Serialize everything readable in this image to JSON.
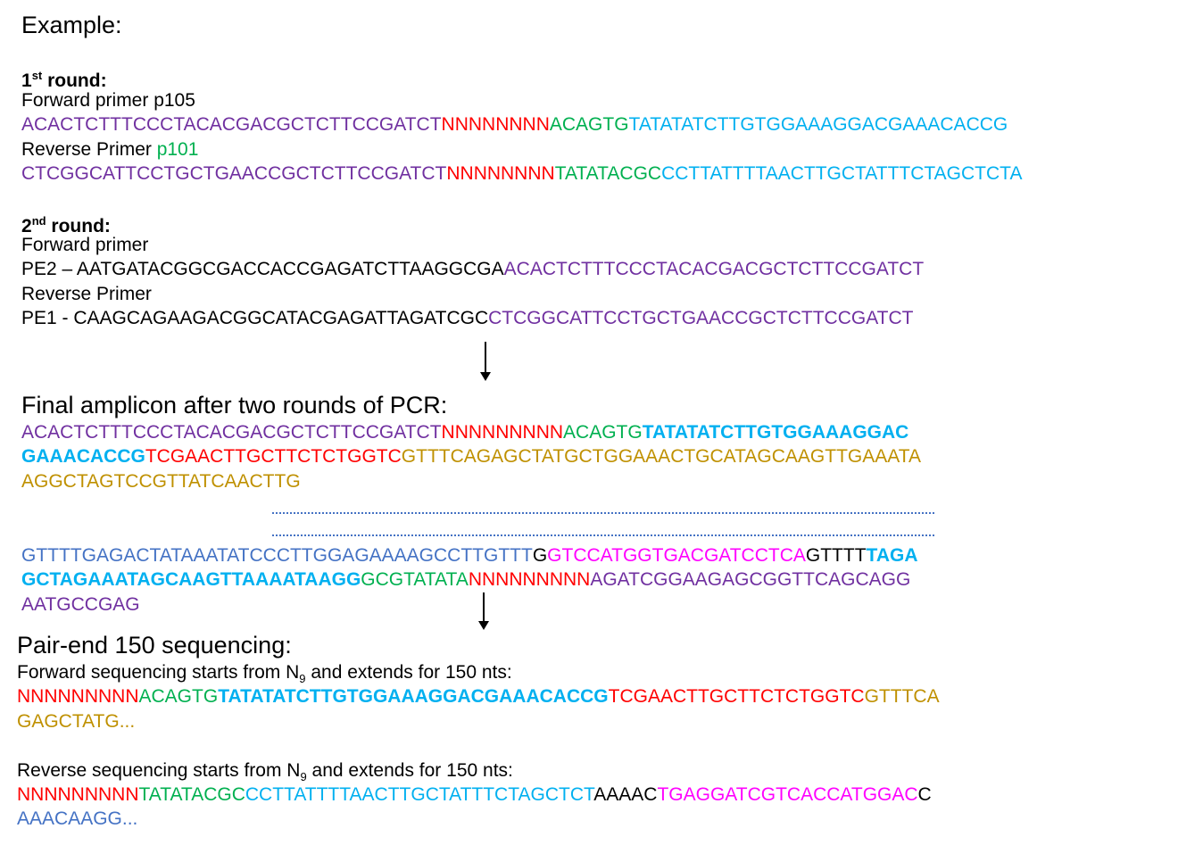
{
  "colors": {
    "purple": "#7030a0",
    "red": "#ff0000",
    "green": "#00b050",
    "cyan": "#00b0f0",
    "olive": "#bf9000",
    "blue": "#4472c4",
    "magenta": "#ff00ff",
    "black": "#000000"
  },
  "heading": "Example:",
  "round1": {
    "label_main": "1",
    "label_sup": "st",
    "label_rest": " round:",
    "forward_label": "Forward primer p105",
    "forward_seq": [
      {
        "t": "ACACTCTTTCCCTACACGACGCTCTTCCGATCT",
        "c": "purple"
      },
      {
        "t": "NNNNNNNN",
        "c": "red"
      },
      {
        "t": "ACAGTG",
        "c": "green"
      },
      {
        "t": "TATATATCTTGTGGAAAGGACGAAACACCG",
        "c": "cyan"
      }
    ],
    "reverse_label": "Reverse Primer ",
    "reverse_label_id": "p101",
    "reverse_seq": [
      {
        "t": "CTCGGCATTCCTGCTGAACCGCTCTTCCGATCT",
        "c": "purple"
      },
      {
        "t": "NNNNNNNN",
        "c": "red"
      },
      {
        "t": "TATATACGC",
        "c": "green"
      },
      {
        "t": "CCTTATTTTAACTTGCTATTTCTAGCTCTA",
        "c": "cyan"
      }
    ]
  },
  "round2": {
    "label_main": "2",
    "label_sup": "nd",
    "label_rest": " round:",
    "forward_label": "Forward primer",
    "forward_seq": [
      {
        "t": "PE2 – AATGATACGGCGACCACCGAGATCTTAAGGCGA",
        "c": "black"
      },
      {
        "t": "ACACTCTTTCCCTACACGACGCTCTTCCGATCT",
        "c": "purple"
      }
    ],
    "reverse_label": "Reverse Primer",
    "reverse_seq": [
      {
        "t": "PE1 - CAAGCAGAAGACGGCATACGAGATTAGATCGC",
        "c": "black"
      },
      {
        "t": "CTCGGCATTCCTGCTGAACCGCTCTTCCGATCT",
        "c": "purple"
      }
    ]
  },
  "final": {
    "title": "Final amplicon after two rounds of PCR:",
    "lines": [
      [
        {
          "t": "ACACTCTTTCCCTACACGACGCTCTTCCGATCT",
          "c": "purple"
        },
        {
          "t": "NNNNNNNNN",
          "c": "red"
        },
        {
          "t": "ACAGTG",
          "c": "green"
        },
        {
          "t": "TATATATCTTGTGGAAAGGAC",
          "c": "cyan",
          "b": true
        }
      ],
      [
        {
          "t": "GAAACACCG",
          "c": "cyan",
          "b": true
        },
        {
          "t": "TCGAACTTGCTTCTCTGGTC",
          "c": "red"
        },
        {
          "t": "GTTTCAGAGCTATGCTGGAAACTGCATAGCAAGTTGAAATA",
          "c": "olive"
        }
      ],
      [
        {
          "t": "AGGCTAGTCCGTTATCAACTTG",
          "c": "olive"
        }
      ],
      [
        {
          "t": "GTTTTGAGACTATAAATATCCCTTGGAGAAAAGCCTTGTTT",
          "c": "blue"
        },
        {
          "t": "G",
          "c": "black"
        },
        {
          "t": "GTCCATGGTGACGATCCTCA",
          "c": "magenta"
        },
        {
          "t": "GTTTT",
          "c": "black"
        },
        {
          "t": "TAGA",
          "c": "cyan",
          "b": true
        }
      ],
      [
        {
          "t": "GCTAGAAATAGCAAGTTAAAATAAGG",
          "c": "cyan",
          "b": true
        },
        {
          "t": "GCGTATATA",
          "c": "green"
        },
        {
          "t": "NNNNNNNNN",
          "c": "red"
        },
        {
          "t": "AGATCGGAAGAGCGGTTCAGCAGG",
          "c": "purple"
        }
      ],
      [
        {
          "t": "AATGCCGAG",
          "c": "purple"
        }
      ]
    ]
  },
  "sequencing": {
    "title": "Pair-end 150 sequencing:",
    "forward_desc_a": "Forward sequencing starts from N",
    "forward_desc_sub": "9",
    "forward_desc_b": " and extends for 150 nts:",
    "forward_lines": [
      [
        {
          "t": "NNNNNNNNN",
          "c": "red"
        },
        {
          "t": "ACAGTG",
          "c": "green"
        },
        {
          "t": "TATATATCTTGTGGAAAGGACGAAACACCG",
          "c": "cyan",
          "b": true
        },
        {
          "t": "TCGAACTTGCTTCTCTGGTC",
          "c": "red"
        },
        {
          "t": "GTTTCA",
          "c": "olive"
        }
      ],
      [
        {
          "t": "GAGCTATG...",
          "c": "olive"
        }
      ]
    ],
    "reverse_desc_a": "Reverse sequencing starts from N",
    "reverse_desc_sub": "9",
    "reverse_desc_b": " and extends for 150 nts:",
    "reverse_lines": [
      [
        {
          "t": "NNNNNNNNN",
          "c": "red"
        },
        {
          "t": "TATATACGC",
          "c": "green"
        },
        {
          "t": "CCTTATTTTAACTTGCTATTTCTAGCTCT",
          "c": "cyan"
        },
        {
          "t": "AAAAC",
          "c": "black"
        },
        {
          "t": "TGAGGATCGTCACCATGGAC",
          "c": "magenta"
        },
        {
          "t": "C",
          "c": "black"
        }
      ],
      [
        {
          "t": "AAACAAGG...",
          "c": "blue"
        }
      ]
    ]
  }
}
